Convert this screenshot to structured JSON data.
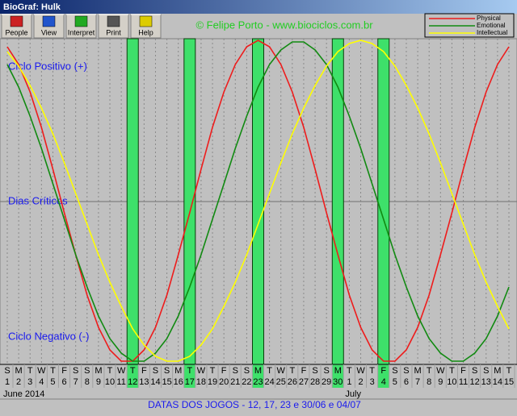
{
  "window": {
    "title": "BioGraf: Hulk"
  },
  "toolbar": {
    "buttons": [
      "People",
      "View",
      "Interpret",
      "Print",
      "Help"
    ],
    "credit": "© Felipe Porto - www.biociclos.com.br"
  },
  "chart_data": {
    "type": "line",
    "annotations": [
      "Ciclo Positivo (+)",
      "Dias Críticos",
      "Ciclo Negativo (-)"
    ],
    "weekdays": [
      "S",
      "M",
      "T",
      "W",
      "T",
      "F",
      "S",
      "S",
      "M",
      "T",
      "W",
      "T",
      "F",
      "S",
      "S",
      "M",
      "T",
      "W",
      "T",
      "F",
      "S",
      "S",
      "M",
      "T",
      "W",
      "T",
      "F",
      "S",
      "S",
      "M",
      "T",
      "W",
      "T",
      "F",
      "S",
      "S",
      "M",
      "T",
      "W",
      "T",
      "F",
      "S",
      "S",
      "M",
      "T"
    ],
    "categories": [
      "1",
      "2",
      "3",
      "4",
      "5",
      "6",
      "7",
      "8",
      "9",
      "10",
      "11",
      "12",
      "13",
      "14",
      "15",
      "16",
      "17",
      "18",
      "19",
      "20",
      "21",
      "22",
      "23",
      "24",
      "25",
      "26",
      "27",
      "28",
      "29",
      "30",
      "1",
      "2",
      "3",
      "4",
      "5",
      "6",
      "7",
      "8",
      "9",
      "10",
      "11",
      "12",
      "13",
      "14",
      "15"
    ],
    "months": [
      "June 2014",
      "July"
    ],
    "series": [
      {
        "name": "Physical",
        "color": "#ee1c1c",
        "values": [
          96,
          85,
          68,
          46,
          20,
          -7,
          -33,
          -58,
          -78,
          -92,
          -99,
          -99,
          -92,
          -78,
          -58,
          -33,
          -7,
          20,
          46,
          68,
          85,
          96,
          100,
          96,
          85,
          68,
          46,
          20,
          -7,
          -33,
          -58,
          -78,
          -92,
          -99,
          -99,
          -92,
          -78,
          -58,
          -33,
          -7,
          20,
          46,
          68,
          85,
          96
        ]
      },
      {
        "name": "Emotional",
        "color": "#118a11",
        "values": [
          85,
          71,
          53,
          33,
          11,
          -11,
          -33,
          -53,
          -71,
          -85,
          -94,
          -99,
          -99,
          -94,
          -85,
          -71,
          -53,
          -33,
          -11,
          11,
          33,
          53,
          71,
          85,
          94,
          99,
          99,
          94,
          85,
          71,
          53,
          33,
          11,
          -11,
          -33,
          -53,
          -71,
          -85,
          -94,
          -99,
          -99,
          -94,
          -85,
          -71,
          -53
        ]
      },
      {
        "name": "Intellectual",
        "color": "#ffff00",
        "values": [
          93,
          84,
          72,
          58,
          42,
          24,
          5,
          -14,
          -33,
          -50,
          -65,
          -79,
          -89,
          -96,
          -99,
          -99,
          -96,
          -89,
          -79,
          -65,
          -50,
          -33,
          -14,
          5,
          24,
          42,
          58,
          72,
          84,
          93,
          98,
          100,
          98,
          93,
          84,
          72,
          58,
          42,
          24,
          5,
          -14,
          -33,
          -50,
          -65,
          -79
        ]
      }
    ],
    "ylim": [
      -100,
      100
    ],
    "highlight_days": [
      11,
      16,
      22,
      29,
      33
    ],
    "highlight_color": "#3ee06a",
    "legend": "upper right",
    "footer": "DATAS DOS JOGOS - 12, 17, 23 e 30/06 e 04/07"
  }
}
